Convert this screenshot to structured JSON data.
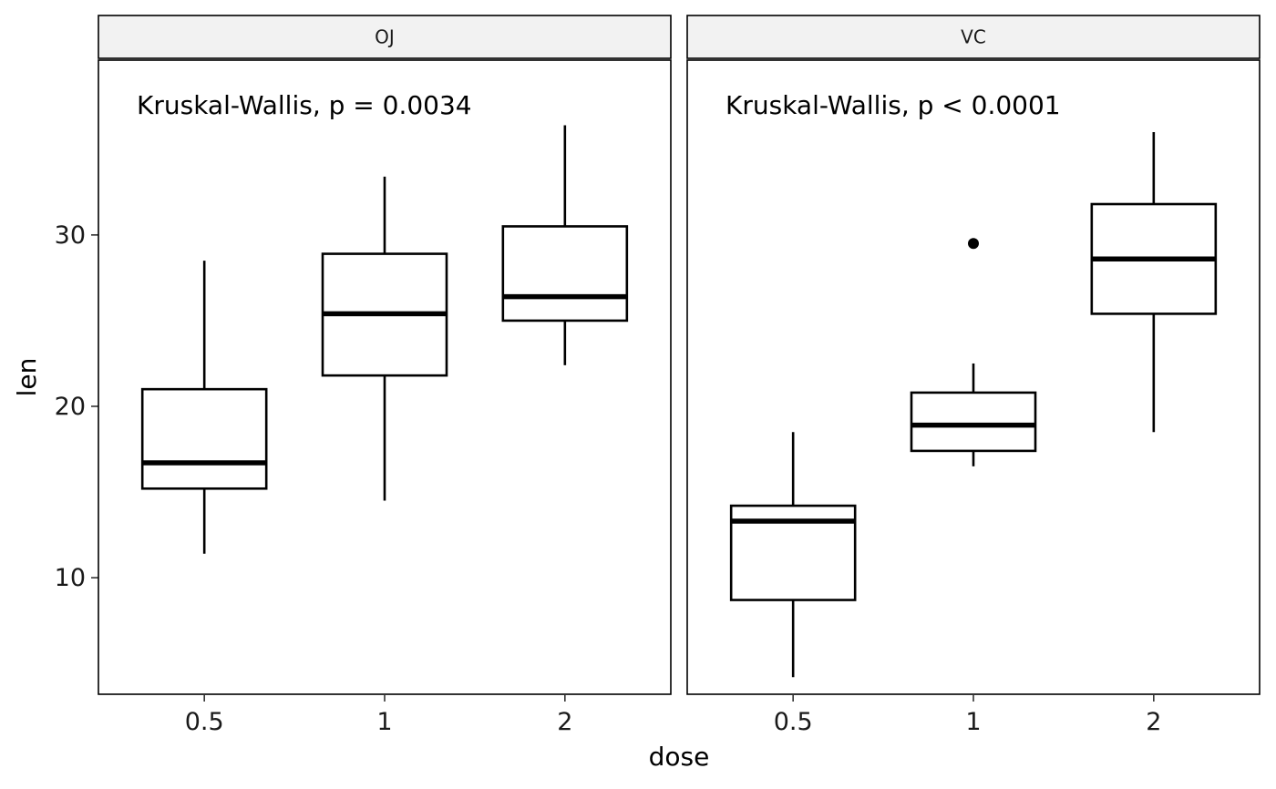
{
  "chart_data": {
    "type": "boxplot",
    "facet_by": "supp",
    "xlabel": "dose",
    "ylabel": "len",
    "categories": [
      "0.5",
      "1",
      "2"
    ],
    "ylim": [
      3.2,
      40.2
    ],
    "yticks": [
      10,
      20,
      30
    ],
    "grid": false,
    "panels": [
      {
        "label": "OJ",
        "annotation": "Kruskal-Wallis, p = 0.0034",
        "boxes": [
          {
            "category": "0.5",
            "whisker_low": 11.4,
            "q1": 15.2,
            "median": 16.7,
            "q3": 21.0,
            "whisker_high": 28.5,
            "outliers": []
          },
          {
            "category": "1",
            "whisker_low": 14.5,
            "q1": 21.8,
            "median": 25.4,
            "q3": 28.9,
            "whisker_high": 33.4,
            "outliers": []
          },
          {
            "category": "2",
            "whisker_low": 22.4,
            "q1": 25.0,
            "median": 26.4,
            "q3": 30.5,
            "whisker_high": 36.4,
            "outliers": []
          }
        ]
      },
      {
        "label": "VC",
        "annotation": "Kruskal-Wallis, p < 0.0001",
        "boxes": [
          {
            "category": "0.5",
            "whisker_low": 4.2,
            "q1": 8.7,
            "median": 13.3,
            "q3": 14.2,
            "whisker_high": 18.5,
            "outliers": []
          },
          {
            "category": "1",
            "whisker_low": 16.5,
            "q1": 17.4,
            "median": 18.9,
            "q3": 20.8,
            "whisker_high": 22.5,
            "outliers": [
              29.5
            ]
          },
          {
            "category": "2",
            "whisker_low": 18.5,
            "q1": 25.4,
            "median": 28.6,
            "q3": 31.8,
            "whisker_high": 36.0,
            "outliers": []
          }
        ]
      }
    ]
  }
}
